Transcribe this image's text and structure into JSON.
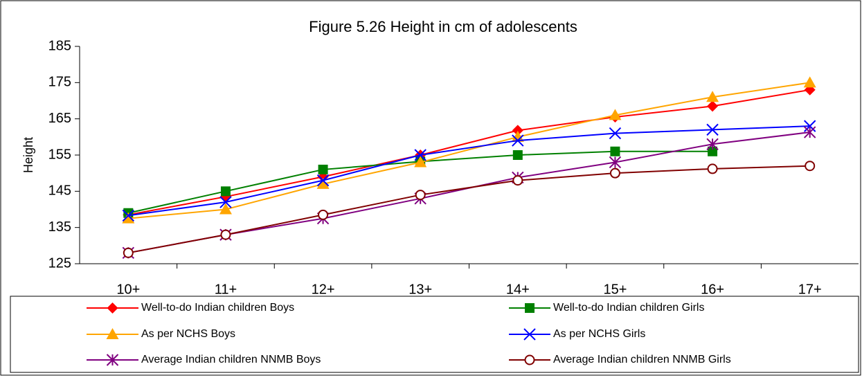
{
  "chart_data": {
    "type": "line",
    "title": "Figure 5.26 Height in cm of adolescents",
    "y_label": "Height",
    "categories": [
      "10+",
      "11+",
      "12+",
      "13+",
      "14+",
      "15+",
      "16+",
      "17+"
    ],
    "ylim": [
      125,
      185
    ],
    "yticks": [
      125,
      135,
      145,
      155,
      165,
      175,
      185
    ],
    "grid": false,
    "series": [
      {
        "name": "Well-to-do Indian children Boys",
        "color": "#ff0000",
        "marker": "diamond",
        "values": [
          138.5,
          143.5,
          149,
          155,
          161.8,
          165.5,
          168.5,
          173
        ]
      },
      {
        "name": "Well-to-do Indian children Girls",
        "color": "#008000",
        "marker": "square",
        "values": [
          139,
          145,
          151,
          153.2,
          155,
          156,
          156,
          null
        ]
      },
      {
        "name": "As per NCHS Boys",
        "color": "#ffa500",
        "marker": "triangle",
        "values": [
          137.5,
          140,
          147,
          153,
          160,
          166,
          171,
          175
        ]
      },
      {
        "name": "As per NCHS Girls",
        "color": "#0000ff",
        "marker": "x",
        "values": [
          138.3,
          142,
          148,
          155,
          159,
          161,
          162,
          163
        ]
      },
      {
        "name": "Average Indian children NNMB Boys",
        "color": "#800080",
        "marker": "star",
        "values": [
          128,
          133,
          137.5,
          143,
          148.8,
          153,
          158,
          161.3
        ]
      },
      {
        "name": "Average Indian children NNMB Girls",
        "color": "#800000",
        "marker": "circle",
        "values": [
          128,
          133,
          138.5,
          144,
          148,
          150,
          151.2,
          152
        ]
      }
    ]
  }
}
